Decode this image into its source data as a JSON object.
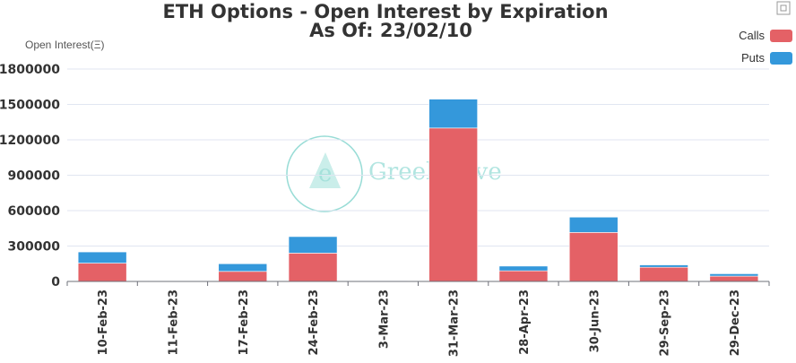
{
  "chart_data": {
    "type": "bar",
    "stacked": true,
    "title": "ETH Options - Open Interest by Expiration",
    "subtitle": "As Of: 23/02/10",
    "ylabel": "Open Interest(Ξ)",
    "xlabel": "",
    "ylim": [
      0,
      1800000
    ],
    "yticks": [
      0,
      300000,
      600000,
      900000,
      1200000,
      1500000,
      1800000
    ],
    "grid": true,
    "legend_position": "top-right",
    "categories": [
      "10-Feb-23",
      "11-Feb-23",
      "17-Feb-23",
      "24-Feb-23",
      "3-Mar-23",
      "31-Mar-23",
      "28-Apr-23",
      "30-Jun-23",
      "29-Sep-23",
      "29-Dec-23"
    ],
    "series": [
      {
        "name": "Calls",
        "color": "#e46166",
        "values": [
          155000,
          4000,
          85000,
          240000,
          2000,
          1300000,
          90000,
          415000,
          120000,
          45000
        ]
      },
      {
        "name": "Puts",
        "color": "#3498db",
        "values": [
          95000,
          3000,
          65000,
          140000,
          2000,
          245000,
          40000,
          130000,
          20000,
          20000
        ]
      }
    ]
  },
  "watermark": {
    "text": "GreeksLive",
    "logo_letter": "e"
  },
  "toolbox": {
    "icon": "fullscreen-icon"
  }
}
